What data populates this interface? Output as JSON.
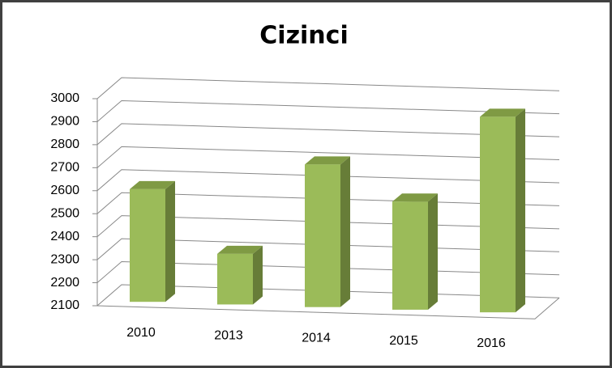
{
  "chart_data": {
    "type": "bar3d",
    "title": "Cizinci",
    "categories": [
      "2010",
      "2013",
      "2014",
      "2015",
      "2016"
    ],
    "values": [
      2590,
      2320,
      2720,
      2570,
      2950
    ],
    "color": "#9bbb59",
    "ylim": [
      2100,
      3000
    ],
    "yticks": [
      2100,
      2200,
      2300,
      2400,
      2500,
      2600,
      2700,
      2800,
      2900,
      3000
    ],
    "grid": true
  }
}
